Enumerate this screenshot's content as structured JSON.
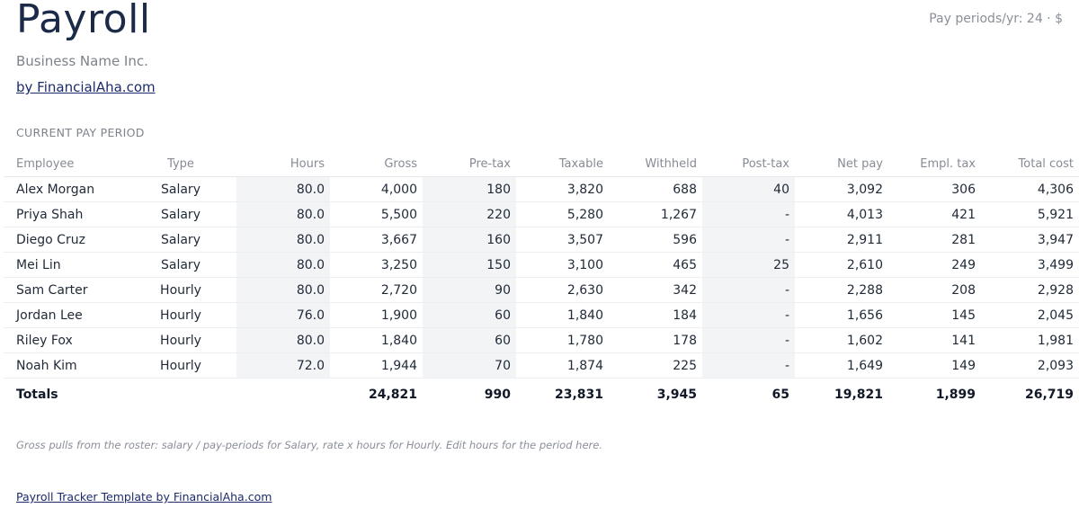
{
  "header": {
    "title": "Payroll",
    "pay_periods": "Pay periods/yr: 24 · $",
    "business_name": "Business Name Inc.",
    "by_link": "by FinancialAha.com"
  },
  "section_label": "CURRENT PAY PERIOD",
  "table": {
    "columns": [
      "Employee",
      "Type",
      "Hours",
      "Gross",
      "Pre-tax",
      "Taxable",
      "Withheld",
      "Post-tax",
      "Net pay",
      "Empl. tax",
      "Total cost"
    ],
    "rows": [
      [
        "Alex Morgan",
        "Salary",
        "80.0",
        "4,000",
        "180",
        "3,820",
        "688",
        "40",
        "3,092",
        "306",
        "4,306"
      ],
      [
        "Priya Shah",
        "Salary",
        "80.0",
        "5,500",
        "220",
        "5,280",
        "1,267",
        "-",
        "4,013",
        "421",
        "5,921"
      ],
      [
        "Diego Cruz",
        "Salary",
        "80.0",
        "3,667",
        "160",
        "3,507",
        "596",
        "-",
        "2,911",
        "281",
        "3,947"
      ],
      [
        "Mei Lin",
        "Salary",
        "80.0",
        "3,250",
        "150",
        "3,100",
        "465",
        "25",
        "2,610",
        "249",
        "3,499"
      ],
      [
        "Sam Carter",
        "Hourly",
        "80.0",
        "2,720",
        "90",
        "2,630",
        "342",
        "-",
        "2,288",
        "208",
        "2,928"
      ],
      [
        "Jordan Lee",
        "Hourly",
        "76.0",
        "1,900",
        "60",
        "1,840",
        "184",
        "-",
        "1,656",
        "145",
        "2,045"
      ],
      [
        "Riley Fox",
        "Hourly",
        "80.0",
        "1,840",
        "60",
        "1,780",
        "178",
        "-",
        "1,602",
        "141",
        "1,981"
      ],
      [
        "Noah Kim",
        "Hourly",
        "72.0",
        "1,944",
        "70",
        "1,874",
        "225",
        "-",
        "1,649",
        "149",
        "2,093"
      ]
    ],
    "totals": [
      "Totals",
      "",
      "",
      "24,821",
      "990",
      "23,831",
      "3,945",
      "65",
      "19,821",
      "1,899",
      "26,719"
    ]
  },
  "note": "Gross pulls from the roster: salary / pay-periods for Salary, rate x hours for Hourly. Edit hours for the period here.",
  "footer_link": "Payroll Tracker Template by FinancialAha.com",
  "colors": {
    "title": "#1b2a49",
    "link": "#1b2a6b",
    "muted": "#7d828b",
    "editable_shade": "#f3f4f6"
  }
}
